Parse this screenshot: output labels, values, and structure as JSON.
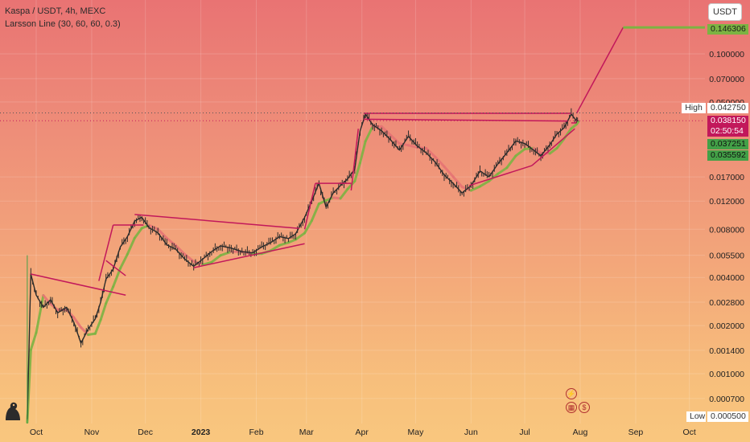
{
  "legend": {
    "symbol_line": "Kaspa / USDT, 4h, MEXC",
    "indicator_line": "Larsson Line (30, 60, 60, 0.3)"
  },
  "currency_button": "USDT",
  "price_axis": {
    "labels": [
      "0.100000",
      "0.070000",
      "0.050000",
      "0.017000",
      "0.012000",
      "0.008000",
      "0.005500",
      "0.004000",
      "0.002800",
      "0.002000",
      "0.001400",
      "0.001000",
      "0.000700"
    ],
    "high_label": "High",
    "high_value": "0.042750",
    "low_label": "Low",
    "low_value": "0.000500"
  },
  "price_tags": {
    "target": "0.146306",
    "last_price": "0.038150",
    "countdown": "02:50:54",
    "larsson_upper": "0.037251",
    "larsson_lower": "0.035592"
  },
  "time_axis": [
    "Oct",
    "Nov",
    "Dec",
    "2023",
    "Feb",
    "Mar",
    "Apr",
    "May",
    "Jun",
    "Jul",
    "Aug",
    "Sep",
    "Oct"
  ],
  "colors": {
    "candle_up": "#2b2b2b",
    "candle_down": "#2b2b2b",
    "larsson_bull": "#7cb342",
    "larsson_bear": "#e57373",
    "trendline": "#c2185b",
    "target_line": "#7cb342",
    "last_price_bg": "#c2185b",
    "larsson_bg": "#43a047"
  },
  "icons": [
    "tradingview-logo-icon",
    "lightning-icon",
    "calendar-icon",
    "dividend-icon"
  ],
  "chart_data": {
    "type": "line",
    "title": "Kaspa / USDT, 4h, MEXC",
    "xlabel": "",
    "ylabel": "",
    "y_scale": "log",
    "ylim": [
      0.0005,
      0.19
    ],
    "x_ticks": [
      "Oct",
      "Nov",
      "Dec",
      "2023",
      "Feb",
      "Mar",
      "Apr",
      "May",
      "Jun",
      "Jul",
      "Aug",
      "Sep",
      "Oct"
    ],
    "grid": true,
    "series": [
      {
        "name": "Kaspa / USDT",
        "points": [
          [
            "2022-09-26",
            0.00052
          ],
          [
            "2022-09-28",
            0.0042
          ],
          [
            "2022-10-01",
            0.0031
          ],
          [
            "2022-10-05",
            0.0026
          ],
          [
            "2022-10-09",
            0.0029
          ],
          [
            "2022-10-13",
            0.0024
          ],
          [
            "2022-10-18",
            0.0026
          ],
          [
            "2022-10-22",
            0.0021
          ],
          [
            "2022-10-26",
            0.00155
          ],
          [
            "2022-10-30",
            0.0019
          ],
          [
            "2022-11-03",
            0.0022
          ],
          [
            "2022-11-06",
            0.0028
          ],
          [
            "2022-11-09",
            0.0039
          ],
          [
            "2022-11-13",
            0.0045
          ],
          [
            "2022-11-17",
            0.0062
          ],
          [
            "2022-11-21",
            0.0072
          ],
          [
            "2022-11-25",
            0.009
          ],
          [
            "2022-11-29",
            0.0095
          ],
          [
            "2022-12-03",
            0.0082
          ],
          [
            "2022-12-08",
            0.0076
          ],
          [
            "2022-12-13",
            0.0064
          ],
          [
            "2022-12-18",
            0.006
          ],
          [
            "2022-12-23",
            0.0052
          ],
          [
            "2022-12-28",
            0.0047
          ],
          [
            "2023-01-02",
            0.0052
          ],
          [
            "2023-01-07",
            0.0058
          ],
          [
            "2023-01-12",
            0.0063
          ],
          [
            "2023-01-18",
            0.0061
          ],
          [
            "2023-01-24",
            0.0058
          ],
          [
            "2023-01-30",
            0.0057
          ],
          [
            "2023-02-04",
            0.0062
          ],
          [
            "2023-02-09",
            0.0066
          ],
          [
            "2023-02-14",
            0.0072
          ],
          [
            "2023-02-19",
            0.007
          ],
          [
            "2023-02-23",
            0.0075
          ],
          [
            "2023-02-28",
            0.0095
          ],
          [
            "2023-03-04",
            0.012
          ],
          [
            "2023-03-08",
            0.0155
          ],
          [
            "2023-03-12",
            0.011
          ],
          [
            "2023-03-16",
            0.0135
          ],
          [
            "2023-03-20",
            0.015
          ],
          [
            "2023-03-24",
            0.0165
          ],
          [
            "2023-03-28",
            0.019
          ],
          [
            "2023-03-31",
            0.033
          ],
          [
            "2023-04-03",
            0.042
          ],
          [
            "2023-04-07",
            0.036
          ],
          [
            "2023-04-12",
            0.033
          ],
          [
            "2023-04-17",
            0.029
          ],
          [
            "2023-04-22",
            0.025
          ],
          [
            "2023-04-27",
            0.0305
          ],
          [
            "2023-05-02",
            0.0265
          ],
          [
            "2023-05-07",
            0.024
          ],
          [
            "2023-05-12",
            0.021
          ],
          [
            "2023-05-17",
            0.0175
          ],
          [
            "2023-05-22",
            0.0155
          ],
          [
            "2023-05-27",
            0.0135
          ],
          [
            "2023-06-01",
            0.015
          ],
          [
            "2023-06-06",
            0.0185
          ],
          [
            "2023-06-11",
            0.017
          ],
          [
            "2023-06-16",
            0.0205
          ],
          [
            "2023-06-21",
            0.024
          ],
          [
            "2023-06-26",
            0.0285
          ],
          [
            "2023-07-01",
            0.0275
          ],
          [
            "2023-07-06",
            0.025
          ],
          [
            "2023-07-10",
            0.023
          ],
          [
            "2023-07-15",
            0.027
          ],
          [
            "2023-07-19",
            0.0315
          ],
          [
            "2023-07-23",
            0.0345
          ],
          [
            "2023-07-27",
            0.042
          ],
          [
            "2023-07-30",
            0.038
          ],
          [
            "2023-07-31",
            0.0382
          ]
        ]
      }
    ],
    "target_value": 0.146306,
    "high_value": 0.04275,
    "last_value": 0.03815,
    "low_value": 0.0005
  }
}
